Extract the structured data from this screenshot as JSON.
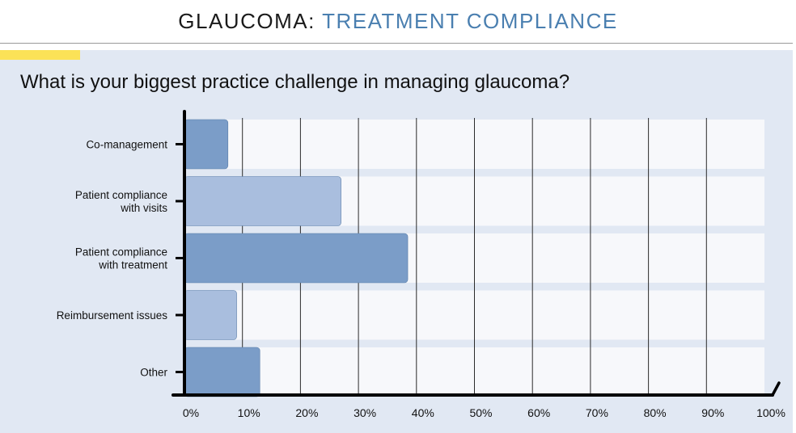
{
  "header": {
    "title_main": "GLAUCOMA",
    "title_separator": ":",
    "title_sub": "TREATMENT COMPLIANCE"
  },
  "question": "What is your biggest practice challenge in managing glaucoma?",
  "colors": {
    "accent": "#4a7fb0",
    "highlight": "#fbe257",
    "panel": "#e1e8f3",
    "bar_dark": "#7b9dc8",
    "bar_light": "#a9bede"
  },
  "chart_data": {
    "type": "bar",
    "orientation": "horizontal",
    "categories": [
      [
        "Co-management"
      ],
      [
        "Patient compliance",
        "with visits"
      ],
      [
        "Patient compliance",
        "with treatment"
      ],
      [
        "Reimbursement issues"
      ],
      [
        "Other"
      ]
    ],
    "values": [
      7.5,
      27,
      38.5,
      9,
      13
    ],
    "bar_shades": [
      "dark",
      "light",
      "dark",
      "light",
      "dark"
    ],
    "xlim": [
      0,
      100
    ],
    "x_ticks": [
      "0%",
      "10%",
      "20%",
      "30%",
      "40%",
      "50%",
      "60%",
      "70%",
      "80%",
      "90%",
      "100%"
    ],
    "grid": true,
    "legend": "none"
  }
}
